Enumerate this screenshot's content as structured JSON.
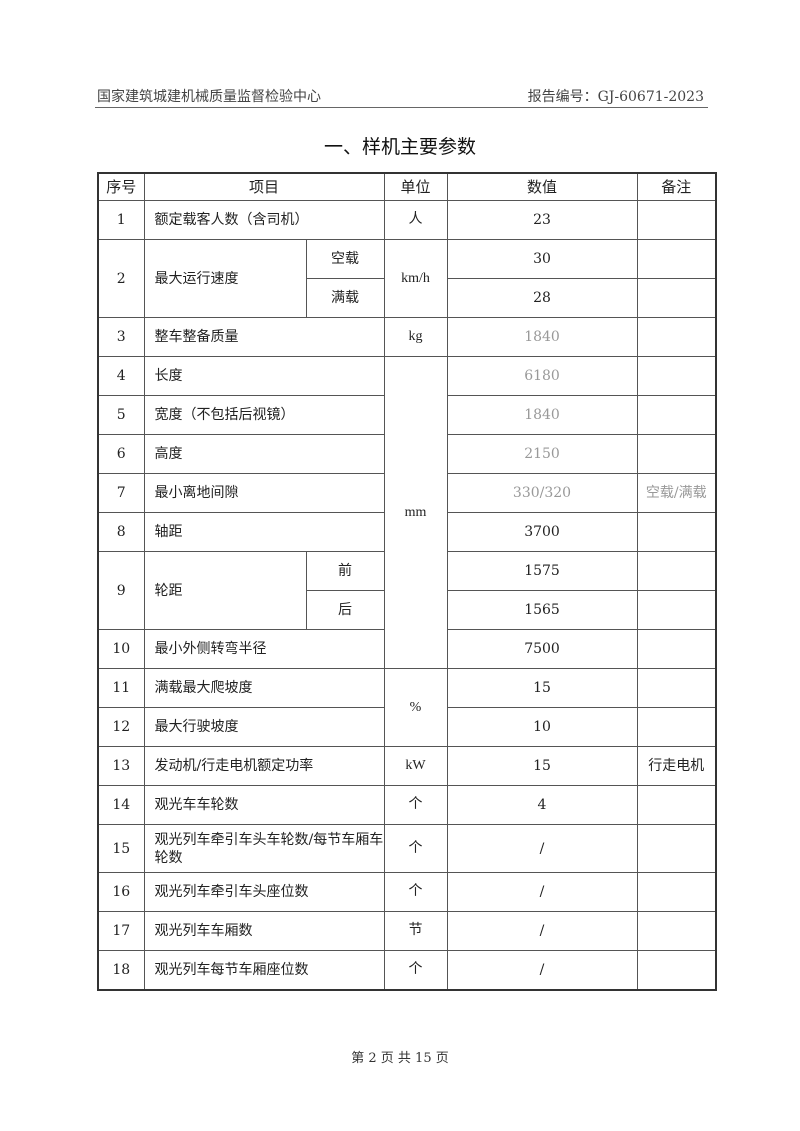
{
  "header": {
    "org": "国家建筑城建机械质量监督检验中心",
    "report_no": "报告编号：GJ-60671-2023"
  },
  "title": "一、样机主要参数",
  "table": {
    "columns": [
      "序号",
      "项目",
      "单位",
      "数值",
      "备注"
    ],
    "rows": [
      {
        "no": "1",
        "item": "额定载客人数（含司机）",
        "unit": "人",
        "value": "23",
        "remark": ""
      },
      {
        "no": "2",
        "item": "最大运行速度",
        "unit": "km/h",
        "sub": [
          {
            "label": "空载",
            "value": "30",
            "remark": ""
          },
          {
            "label": "满载",
            "value": "28",
            "remark": ""
          }
        ]
      },
      {
        "no": "3",
        "item": "整车整备质量",
        "unit": "kg",
        "value": "1840",
        "remark": "",
        "faded": true
      },
      {
        "no": "4",
        "item": "长度",
        "unit": "mm",
        "unit_span": 8,
        "value": "6180",
        "remark": "",
        "faded": true
      },
      {
        "no": "5",
        "item": "宽度（不包括后视镜）",
        "value": "1840",
        "remark": "",
        "faded": true
      },
      {
        "no": "6",
        "item": "高度",
        "value": "2150",
        "remark": "",
        "faded": true
      },
      {
        "no": "7",
        "item": "最小离地间隙",
        "value": "330/320",
        "remark": "空载/满载",
        "faded": true
      },
      {
        "no": "8",
        "item": "轴距",
        "value": "3700",
        "remark": ""
      },
      {
        "no": "9",
        "item": "轮距",
        "sub": [
          {
            "label": "前",
            "value": "1575",
            "remark": ""
          },
          {
            "label": "后",
            "value": "1565",
            "remark": ""
          }
        ]
      },
      {
        "no": "10",
        "item": "最小外侧转弯半径",
        "value": "7500",
        "remark": ""
      },
      {
        "no": "11",
        "item": "满载最大爬坡度",
        "unit": "%",
        "unit_span": 2,
        "value": "15",
        "remark": ""
      },
      {
        "no": "12",
        "item": "最大行驶坡度",
        "value": "10",
        "remark": ""
      },
      {
        "no": "13",
        "item": "发动机/行走电机额定功率",
        "unit": "kW",
        "value": "15",
        "remark": "行走电机"
      },
      {
        "no": "14",
        "item": "观光车车轮数",
        "unit": "个",
        "value": "4",
        "remark": ""
      },
      {
        "no": "15",
        "item": "观光列车牵引车头车轮数/每节车厢车轮数",
        "unit": "个",
        "value": "/",
        "remark": "",
        "tall": true
      },
      {
        "no": "16",
        "item": "观光列车牵引车头座位数",
        "unit": "个",
        "value": "/",
        "remark": ""
      },
      {
        "no": "17",
        "item": "观光列车车厢数",
        "unit": "节",
        "value": "/",
        "remark": ""
      },
      {
        "no": "18",
        "item": "观光列车每节车厢座位数",
        "unit": "个",
        "value": "/",
        "remark": ""
      }
    ]
  },
  "footer": {
    "page": "第 2 页 共 15 页"
  }
}
